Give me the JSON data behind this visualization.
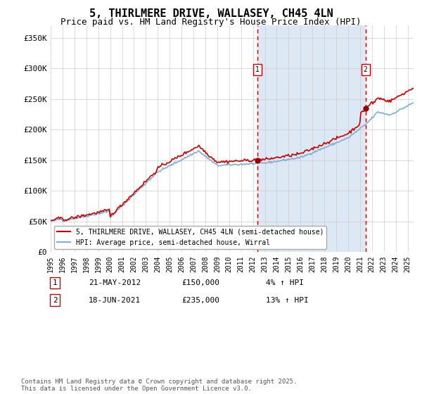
{
  "title": "5, THIRLMERE DRIVE, WALLASEY, CH45 4LN",
  "subtitle": "Price paid vs. HM Land Registry's House Price Index (HPI)",
  "background_color": "#ffffff",
  "plot_bg_color": "#ffffff",
  "shaded_region_color": "#dce9f5",
  "grid_color": "#cccccc",
  "hpi_line_color": "#7ab0d4",
  "price_line_color": "#cc0000",
  "dashed_line_color": "#cc0000",
  "marker_color": "#990000",
  "ylim": [
    0,
    370000
  ],
  "yticks": [
    0,
    50000,
    100000,
    150000,
    200000,
    250000,
    300000,
    350000
  ],
  "ytick_labels": [
    "£0",
    "£50K",
    "£100K",
    "£150K",
    "£200K",
    "£250K",
    "£300K",
    "£350K"
  ],
  "sale1_date_num": 2012.38,
  "sale1_price": 150000,
  "sale1_label": "1",
  "sale1_date_str": "21-MAY-2012",
  "sale1_pct": "4%",
  "sale2_date_num": 2021.46,
  "sale2_price": 235000,
  "sale2_label": "2",
  "sale2_date_str": "18-JUN-2021",
  "sale2_pct": "13%",
  "legend_line1": "5, THIRLMERE DRIVE, WALLASEY, CH45 4LN (semi-detached house)",
  "legend_line2": "HPI: Average price, semi-detached house, Wirral",
  "footer": "Contains HM Land Registry data © Crown copyright and database right 2025.\nThis data is licensed under the Open Government Licence v3.0.",
  "xmin": 1995.0,
  "xmax": 2025.5,
  "shaded_start": 2012.38,
  "shaded_end": 2021.46
}
